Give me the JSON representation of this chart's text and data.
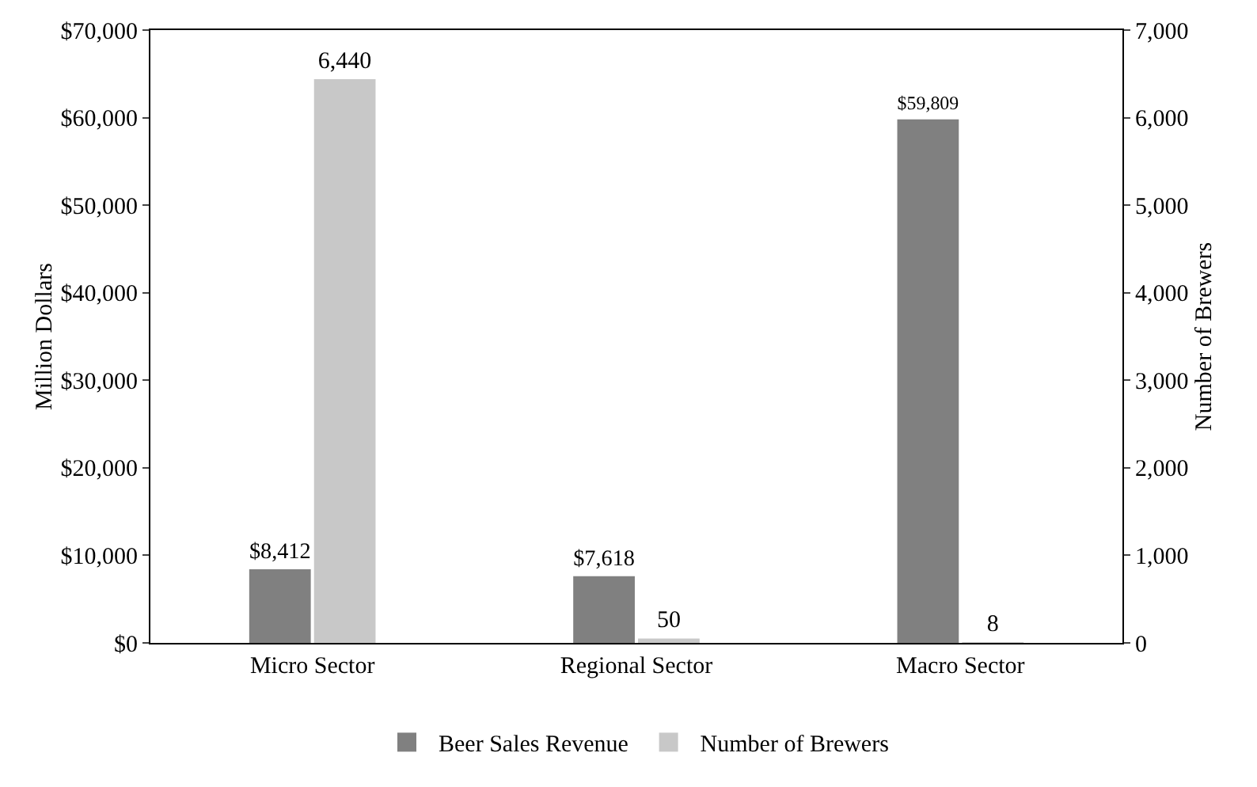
{
  "chart_data": {
    "type": "bar",
    "categories": [
      "Micro Sector",
      "Regional Sector",
      "Macro Sector"
    ],
    "ylabel": "Million Dollars",
    "y2label": "Number of Brewers",
    "series": [
      {
        "name": "Beer Sales Revenue",
        "color": "#808080",
        "values": [
          8412,
          7618,
          59809
        ],
        "value_labels": [
          "$8,412",
          "$7,618",
          "$59,809"
        ]
      },
      {
        "name": "Number of Brewers",
        "color": "#c8c8c8",
        "values": [
          6440,
          50,
          8
        ],
        "value_labels": [
          "6,440",
          "50",
          "8"
        ],
        "axis": "y2"
      }
    ],
    "ylim": [
      0,
      70000
    ],
    "yticks": [
      {
        "value": 0,
        "label": "$0"
      },
      {
        "value": 10000,
        "label": "$10,000"
      },
      {
        "value": 20000,
        "label": "$20,000"
      },
      {
        "value": 30000,
        "label": "$30,000"
      },
      {
        "value": 40000,
        "label": "$40,000"
      },
      {
        "value": 50000,
        "label": "$50,000"
      },
      {
        "value": 60000,
        "label": "$60,000"
      },
      {
        "value": 70000,
        "label": "$70,000"
      }
    ],
    "y2lim": [
      0,
      7000
    ],
    "y2ticks": [
      0,
      {
        "value": 1000,
        "label": "1,000"
      },
      {
        "value": 2000,
        "label": "2,000"
      },
      {
        "value": 3000,
        "label": "3,000"
      },
      {
        "value": 4000,
        "label": "4,000"
      },
      {
        "value": 5000,
        "label": "5,000"
      },
      {
        "value": 6000,
        "label": "6,000"
      },
      {
        "value": 7000,
        "label": "7,000"
      }
    ],
    "grid": false,
    "legend": "bottom"
  }
}
